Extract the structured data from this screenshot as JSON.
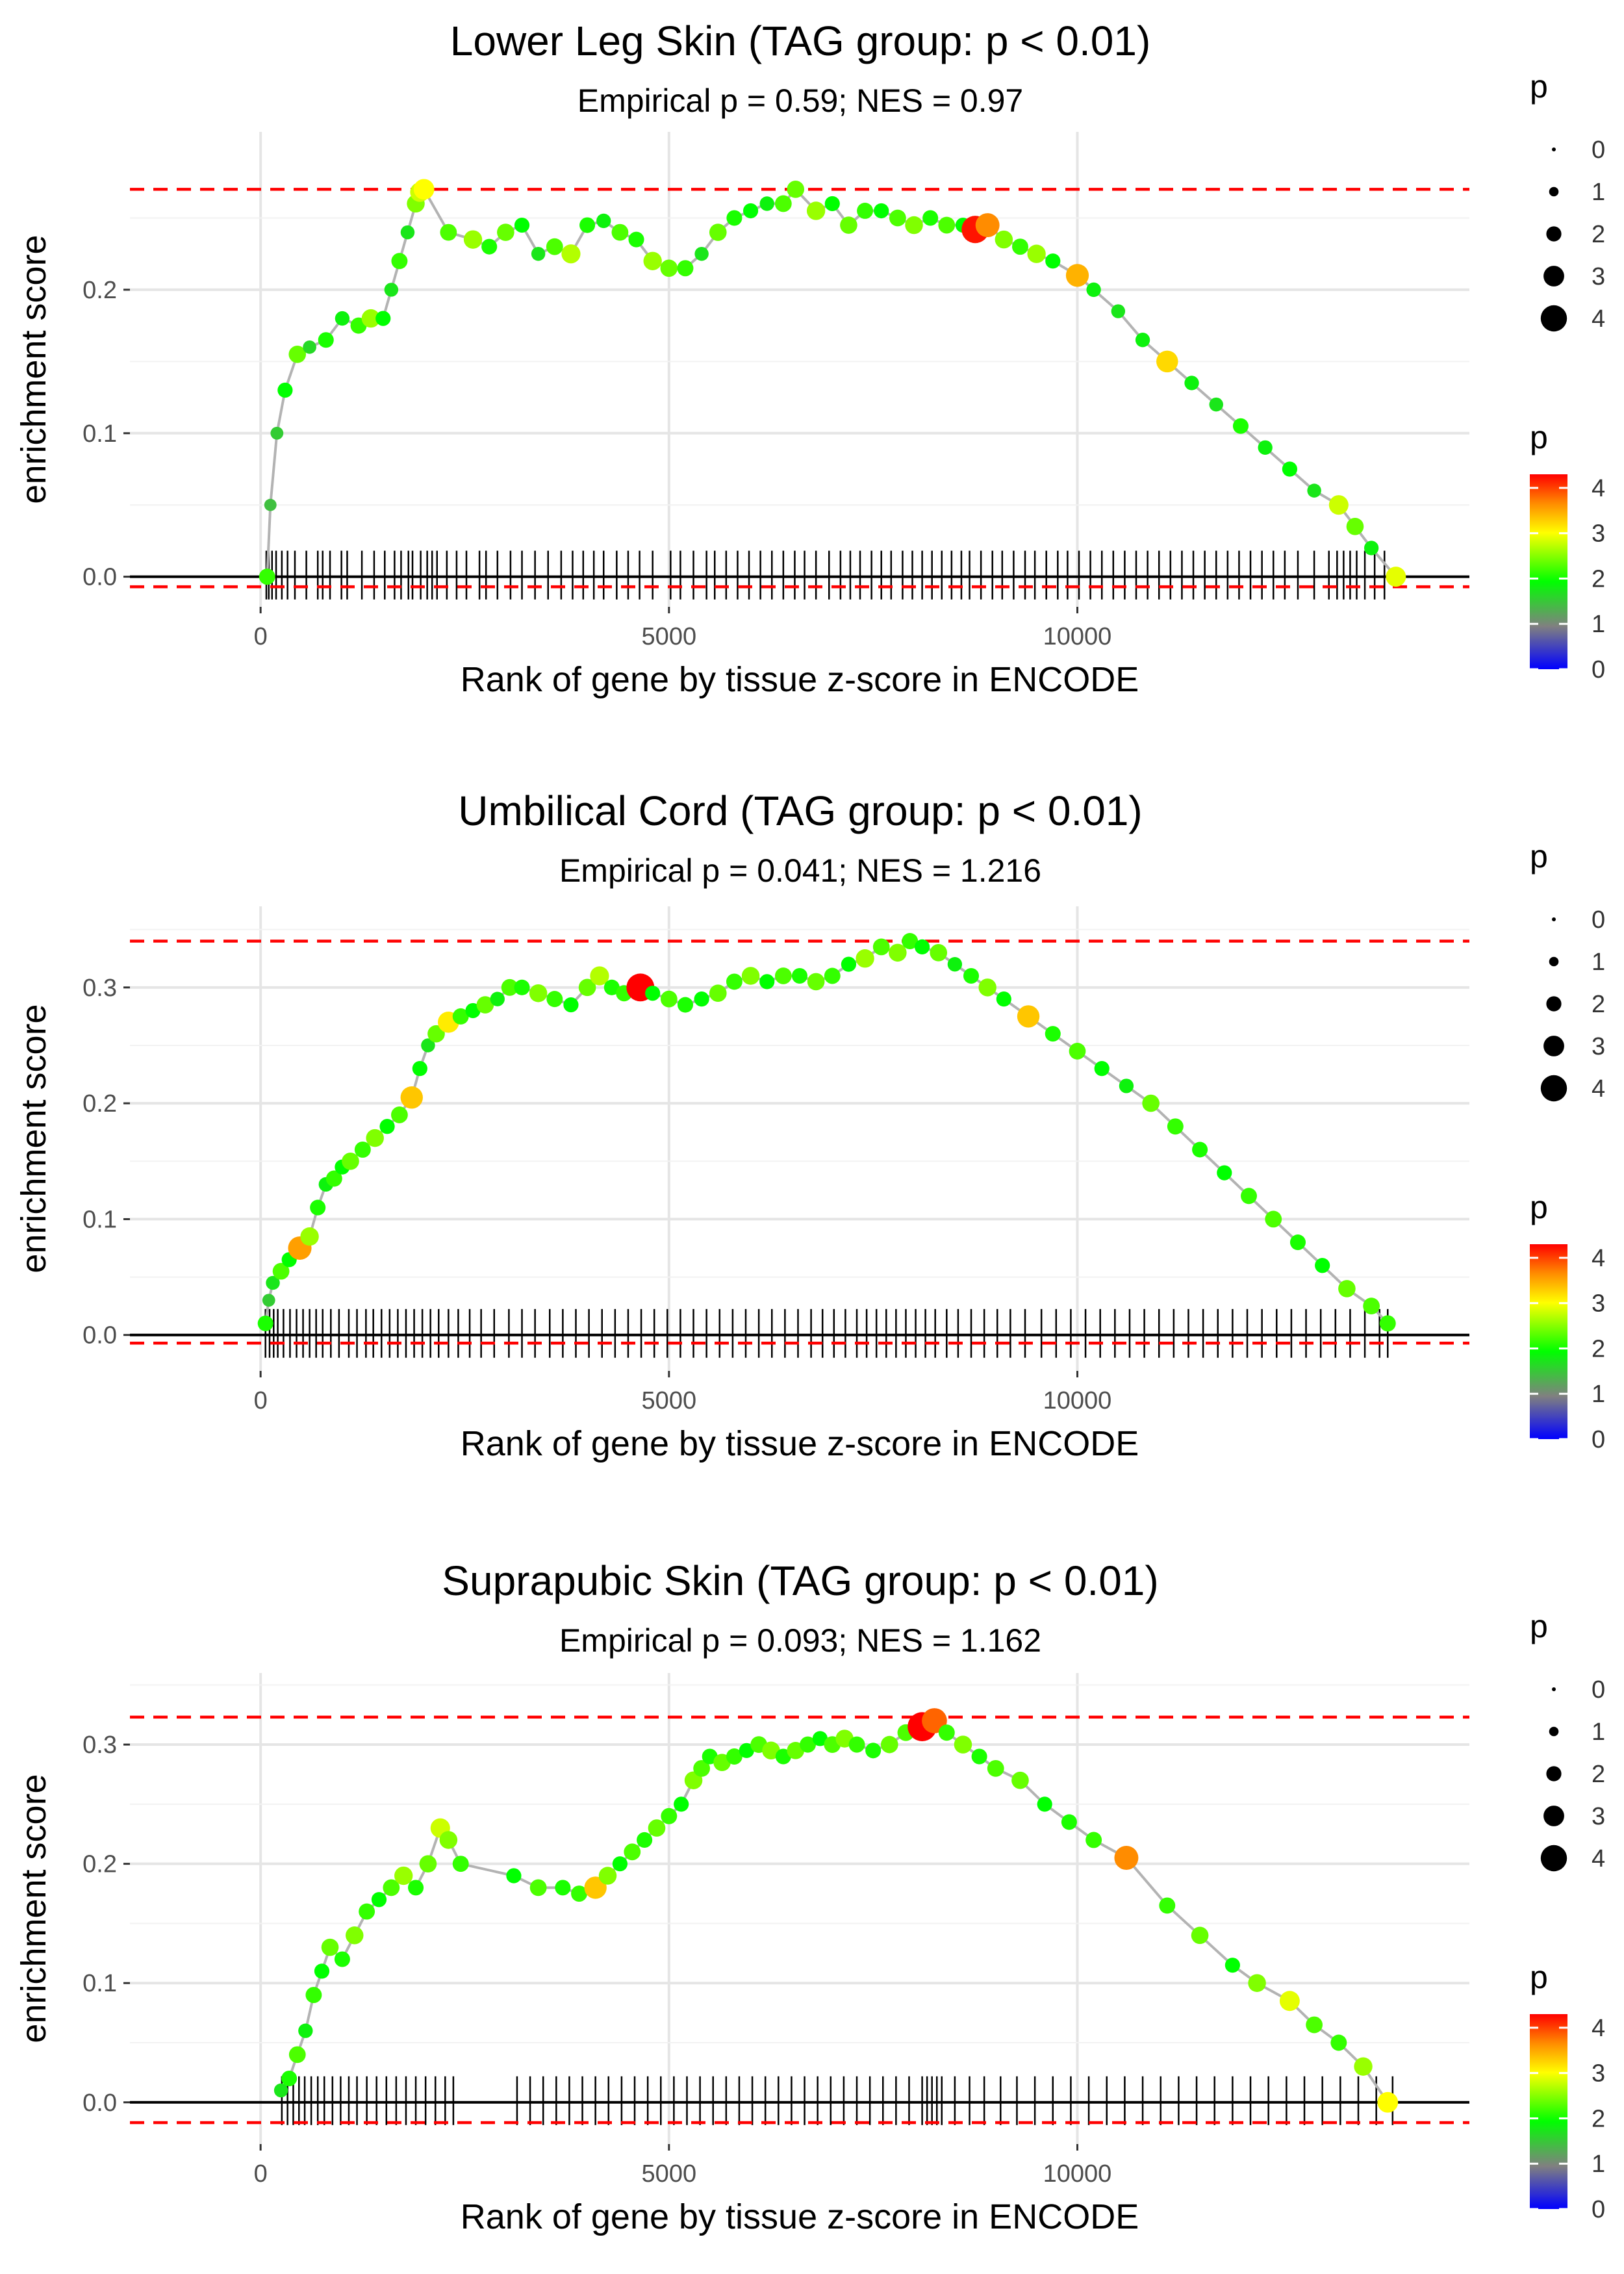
{
  "legend": {
    "size_title": "p",
    "size_labels": [
      "0",
      "1",
      "2",
      "3",
      "4"
    ],
    "color_title": "p",
    "color_labels": [
      "0",
      "1",
      "2",
      "3",
      "4"
    ],
    "color_stops": [
      "#0000ff",
      "#808080",
      "#00ff00",
      "#ffff00",
      "#ff8c00",
      "#ff0000"
    ]
  },
  "colors": {
    "line": "#b3b3b3",
    "threshold": "#ff0000",
    "grid": "#e5e5e5",
    "rug": "#000000"
  },
  "chart_data": [
    {
      "type": "scatter",
      "title": "Lower Leg Skin (TAG group: p < 0.01)",
      "subtitle": "Empirical p = 0.59; NES = 0.97",
      "xlabel": "Rank of gene by tissue z-score in ENCODE",
      "ylabel": "enrichment score",
      "xlim": [
        -1600,
        14800
      ],
      "ylim": [
        -0.021,
        0.31
      ],
      "x_ticks": [
        0,
        5000,
        10000
      ],
      "x_tick_labels": [
        "0",
        "5000",
        "10000"
      ],
      "y_ticks": [
        0,
        0.1,
        0.2
      ],
      "y_tick_labels": [
        "0.0",
        "0.1",
        "0.2"
      ],
      "upper_threshold": 0.27,
      "lower_threshold": -0.007,
      "series": [
        {
          "name": "running enrichment score",
          "x": [
            80,
            120,
            200,
            300,
            450,
            600,
            800,
            1000,
            1200,
            1350,
            1500,
            1600,
            1700,
            1800,
            1900,
            1950,
            2000,
            2300,
            2600,
            2800,
            3000,
            3200,
            3400,
            3600,
            3800,
            4000,
            4200,
            4400,
            4600,
            4800,
            5000,
            5200,
            5400,
            5600,
            5800,
            6000,
            6200,
            6400,
            6550,
            6800,
            7000,
            7200,
            7400,
            7600,
            7800,
            8000,
            8200,
            8400,
            8600,
            8750,
            8900,
            9100,
            9300,
            9500,
            9700,
            10000,
            10200,
            10500,
            10800,
            11100,
            11400,
            11700,
            12000,
            12300,
            12600,
            12900,
            13200,
            13400,
            13600,
            13900
          ],
          "y": [
            0.0,
            0.05,
            0.1,
            0.13,
            0.155,
            0.16,
            0.165,
            0.18,
            0.175,
            0.18,
            0.18,
            0.2,
            0.22,
            0.24,
            0.26,
            0.268,
            0.27,
            0.24,
            0.235,
            0.23,
            0.24,
            0.245,
            0.225,
            0.23,
            0.225,
            0.245,
            0.248,
            0.24,
            0.235,
            0.22,
            0.215,
            0.215,
            0.225,
            0.24,
            0.25,
            0.255,
            0.26,
            0.26,
            0.27,
            0.255,
            0.26,
            0.245,
            0.255,
            0.255,
            0.25,
            0.245,
            0.25,
            0.245,
            0.245,
            0.242,
            0.245,
            0.235,
            0.23,
            0.225,
            0.22,
            0.21,
            0.2,
            0.185,
            0.165,
            0.15,
            0.135,
            0.12,
            0.105,
            0.09,
            0.075,
            0.06,
            0.05,
            0.035,
            0.02,
            0.0
          ],
          "p": [
            2.2,
            1.5,
            1.6,
            2.0,
            2.4,
            1.7,
            2.1,
            1.9,
            2.2,
            2.6,
            2.0,
            1.8,
            2.2,
            1.8,
            2.5,
            2.8,
            3.0,
            2.3,
            2.6,
            2.1,
            2.4,
            2.0,
            1.8,
            2.3,
            2.7,
            2.1,
            1.9,
            2.3,
            2.1,
            2.6,
            2.4,
            2.2,
            1.8,
            2.4,
            2.1,
            2.0,
            1.9,
            2.3,
            2.4,
            2.6,
            2.0,
            2.4,
            2.2,
            2.0,
            2.3,
            2.5,
            2.1,
            2.3,
            2.0,
            4.2,
            3.6,
            2.5,
            2.2,
            2.6,
            2.0,
            3.4,
            1.9,
            1.8,
            1.9,
            3.2,
            1.9,
            1.8,
            2.1,
            1.9,
            2.0,
            1.8,
            2.8,
            2.4,
            1.9,
            2.9
          ]
        }
      ],
      "rug_x": [
        70,
        100,
        140,
        190,
        260,
        330,
        420,
        560,
        700,
        760,
        850,
        990,
        1060,
        1240,
        1390,
        1520,
        1640,
        1720,
        1810,
        1860,
        1960,
        2040,
        2100,
        2160,
        2280,
        2400,
        2520,
        2680,
        2760,
        2900,
        3060,
        3200,
        3360,
        3520,
        3680,
        3820,
        3950,
        4080,
        4200,
        4360,
        4500,
        4640,
        4800,
        5020,
        5140,
        5300,
        5460,
        5560,
        5700,
        5840,
        5980,
        6120,
        6260,
        6400,
        6540,
        6660,
        6800,
        6960,
        7100,
        7220,
        7340,
        7480,
        7600,
        7720,
        7860,
        7980,
        8100,
        8220,
        8340,
        8460,
        8580,
        8680,
        8820,
        8960,
        9080,
        9220,
        9360,
        9480,
        9620,
        9760,
        9880,
        10020,
        10160,
        10300,
        10440,
        10580,
        10720,
        10860,
        11000,
        11140,
        11280,
        11420,
        11560,
        11700,
        11840,
        11980,
        12120,
        12260,
        12400,
        12540,
        12700,
        12900,
        13080,
        13180,
        13260,
        13340,
        13420,
        13520,
        13640,
        13760
      ]
    },
    {
      "type": "scatter",
      "title": "Umbilical Cord (TAG group: p < 0.01)",
      "subtitle": "Empirical p = 0.041; NES = 1.216",
      "xlabel": "Rank of gene by tissue z-score in ENCODE",
      "ylabel": "enrichment score",
      "xlim": [
        -1600,
        14800
      ],
      "ylim": [
        -0.031,
        0.37
      ],
      "x_ticks": [
        0,
        5000,
        10000
      ],
      "x_tick_labels": [
        "0",
        "5000",
        "10000"
      ],
      "y_ticks": [
        0,
        0.1,
        0.2,
        0.3
      ],
      "y_tick_labels": [
        "0.0",
        "0.1",
        "0.2",
        "0.3"
      ],
      "upper_threshold": 0.34,
      "lower_threshold": -0.007,
      "series": [
        {
          "name": "running enrichment score",
          "x": [
            60,
            100,
            150,
            250,
            350,
            480,
            600,
            700,
            800,
            900,
            1000,
            1100,
            1250,
            1400,
            1550,
            1700,
            1850,
            1950,
            2050,
            2150,
            2300,
            2450,
            2600,
            2750,
            2900,
            3050,
            3200,
            3400,
            3600,
            3800,
            4000,
            4150,
            4300,
            4450,
            4650,
            4800,
            5000,
            5200,
            5400,
            5600,
            5800,
            6000,
            6200,
            6400,
            6600,
            6800,
            7000,
            7200,
            7400,
            7600,
            7800,
            7950,
            8100,
            8300,
            8500,
            8700,
            8900,
            9100,
            9400,
            9700,
            10000,
            10300,
            10600,
            10900,
            11200,
            11500,
            11800,
            12100,
            12400,
            12700,
            13000,
            13300,
            13600,
            13800
          ],
          "y": [
            0.01,
            0.03,
            0.045,
            0.055,
            0.065,
            0.075,
            0.085,
            0.11,
            0.13,
            0.135,
            0.145,
            0.15,
            0.16,
            0.17,
            0.18,
            0.19,
            0.205,
            0.23,
            0.25,
            0.26,
            0.27,
            0.275,
            0.28,
            0.285,
            0.29,
            0.3,
            0.3,
            0.295,
            0.29,
            0.285,
            0.3,
            0.31,
            0.3,
            0.295,
            0.3,
            0.295,
            0.29,
            0.285,
            0.29,
            0.295,
            0.305,
            0.31,
            0.305,
            0.31,
            0.31,
            0.305,
            0.31,
            0.32,
            0.325,
            0.335,
            0.33,
            0.34,
            0.335,
            0.33,
            0.32,
            0.31,
            0.3,
            0.29,
            0.275,
            0.26,
            0.245,
            0.23,
            0.215,
            0.2,
            0.18,
            0.16,
            0.14,
            0.12,
            0.1,
            0.08,
            0.06,
            0.04,
            0.025,
            0.01
          ],
          "p": [
            2.1,
            1.6,
            1.8,
            2.3,
            2.0,
            3.5,
            2.6,
            2.1,
            1.9,
            2.2,
            2.0,
            2.4,
            2.2,
            2.5,
            2.0,
            2.3,
            3.3,
            2.0,
            1.8,
            2.4,
            3.1,
            2.2,
            2.0,
            2.4,
            1.9,
            2.3,
            2.1,
            2.5,
            2.2,
            2.0,
            2.4,
            2.7,
            2.1,
            2.2,
            4.3,
            2.0,
            2.3,
            2.1,
            2.0,
            2.4,
            2.2,
            2.5,
            2.0,
            2.3,
            2.1,
            2.4,
            2.2,
            2.0,
            2.6,
            2.3,
            2.5,
            2.2,
            2.0,
            2.4,
            1.9,
            2.1,
            2.5,
            2.0,
            3.3,
            2.1,
            2.3,
            2.0,
            1.9,
            2.4,
            2.2,
            2.1,
            2.0,
            2.2,
            2.3,
            2.1,
            2.0,
            2.4,
            2.3,
            2.2
          ]
        }
      ],
      "rug_x": [
        60,
        110,
        160,
        210,
        280,
        360,
        440,
        520,
        600,
        680,
        760,
        860,
        960,
        1080,
        1180,
        1290,
        1380,
        1480,
        1580,
        1680,
        1780,
        1880,
        1980,
        2080,
        2180,
        2300,
        2420,
        2560,
        2700,
        2860,
        3040,
        3200,
        3360,
        3540,
        3700,
        3860,
        4020,
        4180,
        4340,
        4500,
        4660,
        4820,
        4980,
        5140,
        5300,
        5460,
        5620,
        5780,
        5940,
        6100,
        6260,
        6420,
        6580,
        6740,
        6880,
        7020,
        7160,
        7300,
        7420,
        7540,
        7660,
        7780,
        7900,
        8020,
        8140,
        8260,
        8400,
        8540,
        8700,
        8860,
        9020,
        9180,
        9360,
        9560,
        9740,
        9920,
        10100,
        10280,
        10460,
        10640,
        10820,
        11000,
        11180,
        11360,
        11540,
        11720,
        11900,
        12080,
        12260,
        12440,
        12620,
        12800,
        12980,
        13160,
        13340,
        13520,
        13700,
        13800
      ]
    },
    {
      "type": "scatter",
      "title": "Suprapubic Skin (TAG group: p < 0.01)",
      "subtitle": "Empirical p = 0.093; NES = 1.162",
      "xlabel": "Rank of gene by tissue z-score in ENCODE",
      "ylabel": "enrichment score",
      "xlim": [
        -1600,
        14800
      ],
      "ylim": [
        -0.035,
        0.36
      ],
      "x_ticks": [
        0,
        5000,
        10000
      ],
      "x_tick_labels": [
        "0",
        "5000",
        "10000"
      ],
      "y_ticks": [
        0,
        0.1,
        0.2,
        0.3
      ],
      "y_tick_labels": [
        "0.0",
        "0.1",
        "0.2",
        "0.3"
      ],
      "upper_threshold": 0.323,
      "lower_threshold": -0.017,
      "series": [
        {
          "name": "running enrichment score",
          "x": [
            250,
            350,
            450,
            550,
            650,
            750,
            850,
            1000,
            1150,
            1300,
            1450,
            1600,
            1750,
            1900,
            2050,
            2200,
            2300,
            2450,
            3100,
            3400,
            3700,
            3900,
            4100,
            4250,
            4400,
            4550,
            4700,
            4850,
            5000,
            5150,
            5300,
            5400,
            5500,
            5650,
            5800,
            5950,
            6100,
            6250,
            6400,
            6550,
            6700,
            6850,
            7000,
            7150,
            7300,
            7500,
            7700,
            7900,
            8100,
            8250,
            8400,
            8600,
            8800,
            9000,
            9300,
            9600,
            9900,
            10200,
            10600,
            11100,
            11500,
            11900,
            12200,
            12600,
            12900,
            13200,
            13500,
            13800
          ],
          "y": [
            0.01,
            0.02,
            0.04,
            0.06,
            0.09,
            0.11,
            0.13,
            0.12,
            0.14,
            0.16,
            0.17,
            0.18,
            0.19,
            0.18,
            0.2,
            0.23,
            0.22,
            0.2,
            0.19,
            0.18,
            0.18,
            0.175,
            0.18,
            0.19,
            0.2,
            0.21,
            0.22,
            0.23,
            0.24,
            0.25,
            0.27,
            0.28,
            0.29,
            0.285,
            0.29,
            0.295,
            0.3,
            0.295,
            0.29,
            0.295,
            0.3,
            0.305,
            0.3,
            0.305,
            0.3,
            0.295,
            0.3,
            0.31,
            0.315,
            0.32,
            0.31,
            0.3,
            0.29,
            0.28,
            0.27,
            0.25,
            0.235,
            0.22,
            0.205,
            0.165,
            0.14,
            0.115,
            0.1,
            0.085,
            0.065,
            0.05,
            0.03,
            0.0
          ],
          "p": [
            1.8,
            2.1,
            2.3,
            1.9,
            2.2,
            2.0,
            2.4,
            2.1,
            2.5,
            2.2,
            2.0,
            2.3,
            2.6,
            2.1,
            2.4,
            2.8,
            2.5,
            2.2,
            2.0,
            2.3,
            2.1,
            2.2,
            3.3,
            2.5,
            2.0,
            2.3,
            2.1,
            2.4,
            2.2,
            2.0,
            2.5,
            2.3,
            2.1,
            2.4,
            2.2,
            2.0,
            2.3,
            2.5,
            2.1,
            2.4,
            2.2,
            2.0,
            2.3,
            2.5,
            2.2,
            2.1,
            2.4,
            2.3,
            4.5,
            3.8,
            2.2,
            2.5,
            2.1,
            2.3,
            2.4,
            2.0,
            2.1,
            2.2,
            3.6,
            2.2,
            2.4,
            2.0,
            2.5,
            2.9,
            2.3,
            2.2,
            2.6,
            3.0
          ]
        }
      ],
      "rug_x": [
        260,
        330,
        400,
        470,
        540,
        620,
        700,
        780,
        880,
        980,
        1080,
        1180,
        1300,
        1420,
        1540,
        1660,
        1780,
        1900,
        2020,
        2140,
        2260,
        2360,
        3140,
        3300,
        3460,
        3620,
        3780,
        3940,
        4100,
        4260,
        4420,
        4580,
        4740,
        4900,
        5060,
        5220,
        5380,
        5540,
        5700,
        5860,
        6020,
        6180,
        6340,
        6500,
        6660,
        6820,
        6980,
        7140,
        7300,
        7460,
        7620,
        7780,
        7940,
        8100,
        8160,
        8220,
        8280,
        8340,
        8500,
        8680,
        8860,
        9060,
        9260,
        9480,
        9700,
        9920,
        10140,
        10360,
        10580,
        10800,
        11020,
        11240,
        11460,
        11680,
        11900,
        12120,
        12340,
        12560,
        12780,
        13000,
        13220,
        13440,
        13660,
        13860
      ]
    }
  ]
}
